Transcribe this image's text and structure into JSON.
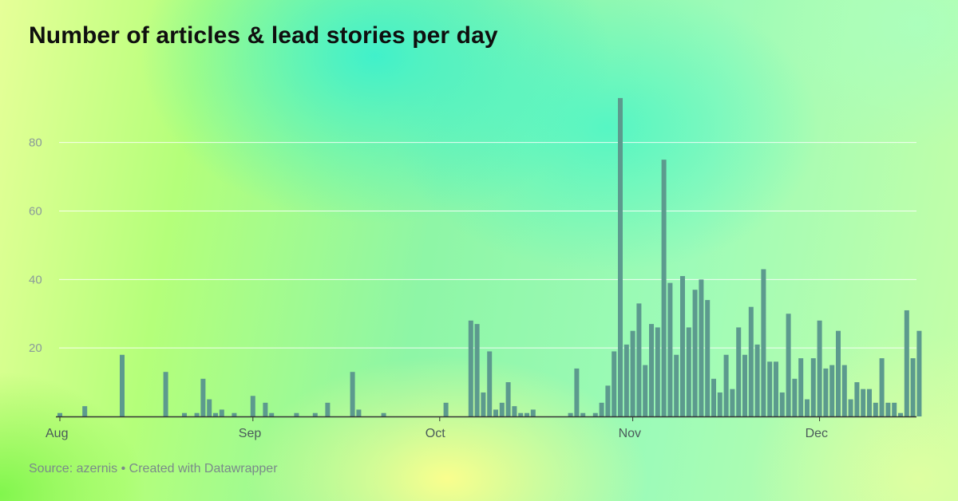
{
  "header": {
    "title": "Number of articles & lead stories per day"
  },
  "footer": {
    "source": "Source: azernis • Created with Datawrapper"
  },
  "colors": {
    "bar": "#5c9a8e",
    "grid": "#ffffff",
    "axis": "#333333"
  },
  "chart_data": {
    "type": "bar",
    "title": "Number of articles & lead stories per day",
    "xlabel": "",
    "ylabel": "",
    "ylim": [
      0,
      96
    ],
    "grid": true,
    "y_ticks": [
      20,
      40,
      60,
      80
    ],
    "x_ticks": [
      "Aug",
      "Sep",
      "Oct",
      "Nov",
      "Dec"
    ],
    "x_tick_days": [
      0,
      31,
      61,
      92,
      122
    ],
    "start_day": 0,
    "values": [
      1,
      0,
      0,
      0,
      3,
      0,
      0,
      0,
      0,
      0,
      18,
      0,
      0,
      0,
      0,
      0,
      0,
      13,
      0,
      0,
      1,
      0,
      1,
      11,
      5,
      1,
      2,
      0,
      1,
      0,
      0,
      6,
      0,
      4,
      1,
      0,
      0,
      0,
      1,
      0,
      0,
      1,
      0,
      4,
      0,
      0,
      0,
      13,
      2,
      0,
      0,
      0,
      1,
      0,
      0,
      0,
      0,
      0,
      0,
      0,
      0,
      0,
      4,
      0,
      0,
      0,
      28,
      27,
      7,
      19,
      2,
      4,
      10,
      3,
      1,
      1,
      2,
      0,
      0,
      0,
      0,
      0,
      1,
      14,
      1,
      0,
      1,
      4,
      9,
      19,
      93,
      21,
      25,
      33,
      15,
      27,
      26,
      75,
      39,
      18,
      41,
      26,
      37,
      40,
      34,
      11,
      7,
      18,
      8,
      26,
      18,
      32,
      21,
      43,
      16,
      16,
      7,
      30,
      11,
      17,
      5,
      17,
      28,
      14,
      15,
      25,
      15,
      5,
      10,
      8,
      8,
      4,
      17,
      4,
      4,
      1,
      31,
      17,
      25
    ]
  }
}
